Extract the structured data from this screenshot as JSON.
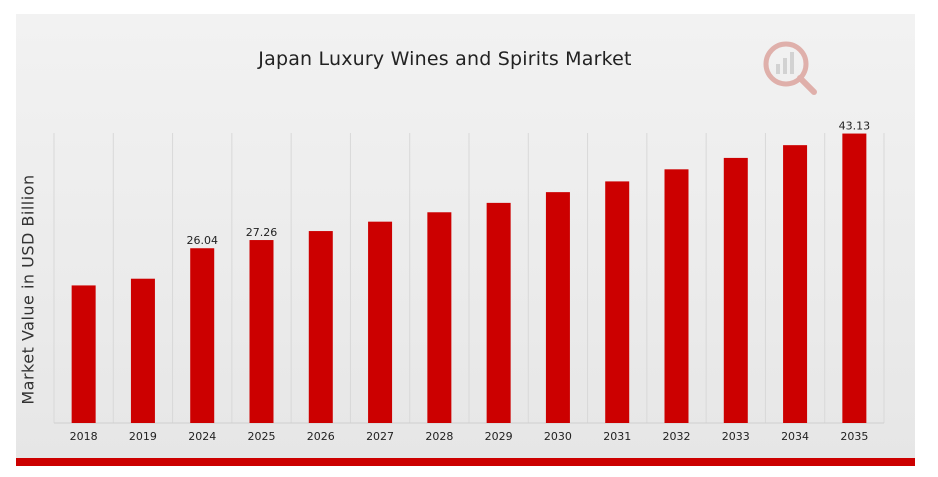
{
  "chart_data": {
    "type": "bar",
    "title": "Japan Luxury Wines and Spirits Market",
    "xlabel": "",
    "ylabel": "Market Value in USD Billion",
    "categories": [
      "2018",
      "2019",
      "2024",
      "2025",
      "2026",
      "2027",
      "2028",
      "2029",
      "2030",
      "2031",
      "2032",
      "2033",
      "2034",
      "2035"
    ],
    "values": [
      20.5,
      21.5,
      26.04,
      27.26,
      28.6,
      30.0,
      31.4,
      32.8,
      34.4,
      36.0,
      37.8,
      39.5,
      41.4,
      43.13
    ],
    "data_labels": [
      {
        "category": "2024",
        "text": "26.04"
      },
      {
        "category": "2025",
        "text": "27.26"
      },
      {
        "category": "2035",
        "text": "43.13"
      }
    ],
    "ylim": [
      0,
      45
    ],
    "grid": "vertical",
    "bar_color": "#cc0000",
    "legend": "none"
  }
}
